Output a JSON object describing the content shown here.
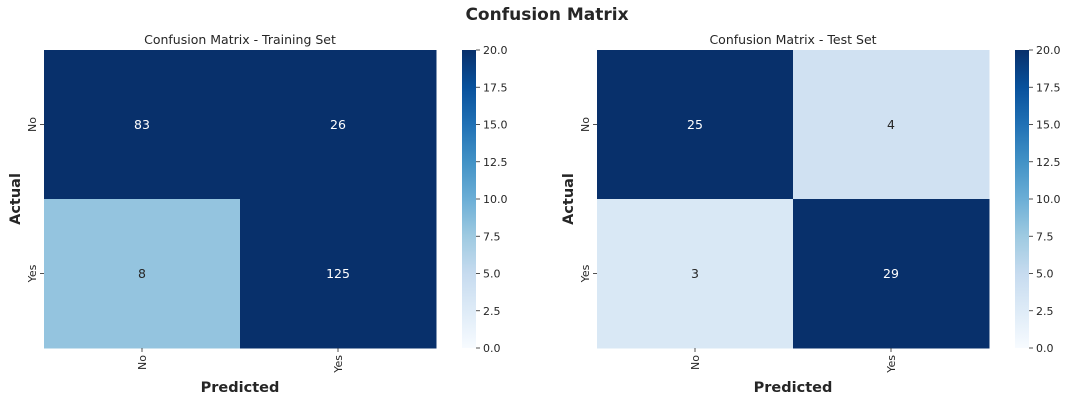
{
  "suptitle": "Confusion Matrix",
  "chart_data": [
    {
      "type": "heatmap",
      "title": "Confusion Matrix - Training Set",
      "xlabel": "Predicted",
      "ylabel": "Actual",
      "x_categories": [
        "No",
        "Yes"
      ],
      "y_categories": [
        "No",
        "Yes"
      ],
      "values": [
        [
          83,
          26
        ],
        [
          8,
          125
        ]
      ],
      "vmin": 0,
      "vmax": 20,
      "colorbar_ticks": [
        "0.0",
        "2.5",
        "5.0",
        "7.5",
        "10.0",
        "12.5",
        "15.0",
        "17.5",
        "20.0"
      ],
      "colormap": "Blues"
    },
    {
      "type": "heatmap",
      "title": "Confusion Matrix - Test Set",
      "xlabel": "Predicted",
      "ylabel": "Actual",
      "x_categories": [
        "No",
        "Yes"
      ],
      "y_categories": [
        "No",
        "Yes"
      ],
      "values": [
        [
          25,
          4
        ],
        [
          3,
          29
        ]
      ],
      "vmin": 0,
      "vmax": 20,
      "colorbar_ticks": [
        "0.0",
        "2.5",
        "5.0",
        "7.5",
        "10.0",
        "12.5",
        "15.0",
        "17.5",
        "20.0"
      ],
      "colormap": "Blues"
    }
  ],
  "colors": {
    "blues_stops": [
      "#f7fbff",
      "#deebf7",
      "#c6dbef",
      "#9ecae1",
      "#6baed6",
      "#4292c6",
      "#2171b5",
      "#08519c",
      "#08306b"
    ],
    "dark_text": "#262626",
    "annot_light": "#ffffff",
    "annot_dark": "#262626"
  }
}
